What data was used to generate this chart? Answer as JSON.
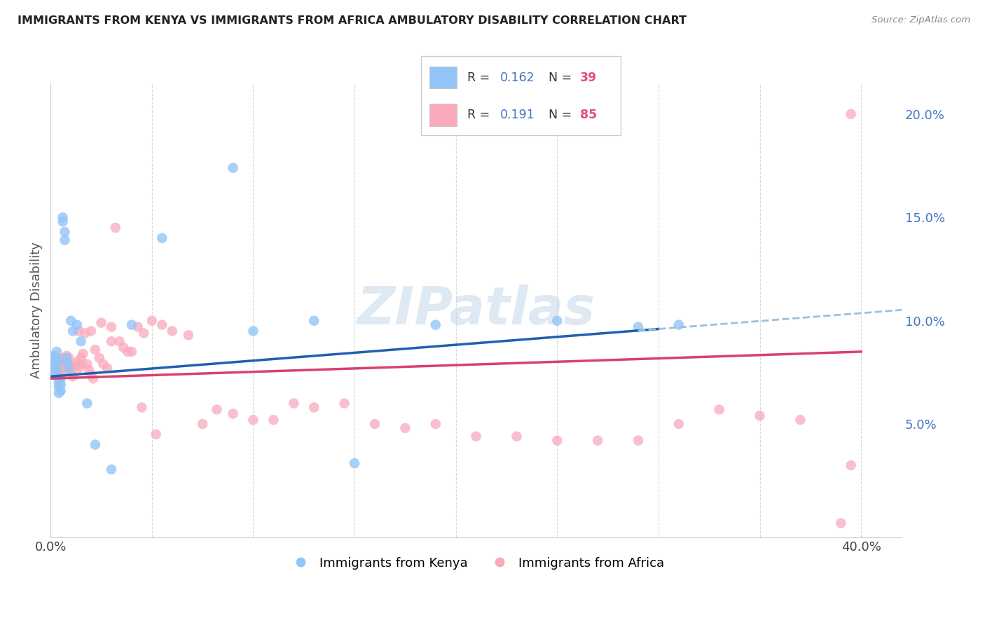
{
  "title": "IMMIGRANTS FROM KENYA VS IMMIGRANTS FROM AFRICA AMBULATORY DISABILITY CORRELATION CHART",
  "source": "Source: ZipAtlas.com",
  "ylabel": "Ambulatory Disability",
  "xlim": [
    0.0,
    0.42
  ],
  "ylim": [
    -0.005,
    0.215
  ],
  "x_ticks": [
    0.0,
    0.05,
    0.1,
    0.15,
    0.2,
    0.25,
    0.3,
    0.35,
    0.4
  ],
  "x_tick_labels": [
    "0.0%",
    "",
    "",
    "",
    "",
    "",
    "",
    "",
    "40.0%"
  ],
  "y_ticks_right": [
    0.05,
    0.1,
    0.15,
    0.2
  ],
  "y_tick_labels_right": [
    "5.0%",
    "10.0%",
    "15.0%",
    "20.0%"
  ],
  "color_kenya": "#92C5F7",
  "color_africa": "#F9AABB",
  "color_line_kenya": "#2060B0",
  "color_line_africa": "#D94070",
  "color_line_kenya_dash": "#9BBFE0",
  "watermark_color": "#C5D8EC",
  "kenya_x": [
    0.001,
    0.001,
    0.002,
    0.002,
    0.002,
    0.003,
    0.003,
    0.003,
    0.003,
    0.004,
    0.004,
    0.004,
    0.005,
    0.005,
    0.005,
    0.006,
    0.006,
    0.007,
    0.007,
    0.008,
    0.008,
    0.009,
    0.01,
    0.011,
    0.013,
    0.015,
    0.018,
    0.022,
    0.03,
    0.04,
    0.055,
    0.09,
    0.1,
    0.13,
    0.15,
    0.19,
    0.25,
    0.29,
    0.31
  ],
  "kenya_y": [
    0.082,
    0.079,
    0.083,
    0.08,
    0.075,
    0.085,
    0.082,
    0.079,
    0.076,
    0.07,
    0.068,
    0.065,
    0.072,
    0.069,
    0.066,
    0.15,
    0.148,
    0.143,
    0.139,
    0.082,
    0.08,
    0.077,
    0.1,
    0.095,
    0.098,
    0.09,
    0.06,
    0.04,
    0.028,
    0.098,
    0.14,
    0.174,
    0.095,
    0.1,
    0.031,
    0.098,
    0.1,
    0.097,
    0.098
  ],
  "africa_x": [
    0.001,
    0.001,
    0.001,
    0.002,
    0.002,
    0.002,
    0.003,
    0.003,
    0.003,
    0.004,
    0.004,
    0.004,
    0.005,
    0.005,
    0.005,
    0.005,
    0.006,
    0.006,
    0.007,
    0.007,
    0.007,
    0.008,
    0.008,
    0.008,
    0.009,
    0.009,
    0.01,
    0.01,
    0.011,
    0.012,
    0.013,
    0.014,
    0.015,
    0.015,
    0.016,
    0.017,
    0.018,
    0.019,
    0.02,
    0.021,
    0.022,
    0.024,
    0.026,
    0.028,
    0.03,
    0.032,
    0.034,
    0.036,
    0.04,
    0.043,
    0.046,
    0.05,
    0.055,
    0.06,
    0.068,
    0.075,
    0.082,
    0.09,
    0.1,
    0.11,
    0.12,
    0.13,
    0.145,
    0.16,
    0.175,
    0.19,
    0.21,
    0.23,
    0.25,
    0.27,
    0.29,
    0.31,
    0.33,
    0.35,
    0.37,
    0.39,
    0.395,
    0.014,
    0.02,
    0.025,
    0.03,
    0.038,
    0.045,
    0.052,
    0.395
  ],
  "africa_y": [
    0.083,
    0.08,
    0.077,
    0.082,
    0.079,
    0.076,
    0.08,
    0.077,
    0.074,
    0.078,
    0.075,
    0.072,
    0.082,
    0.079,
    0.076,
    0.073,
    0.08,
    0.077,
    0.082,
    0.079,
    0.076,
    0.083,
    0.08,
    0.077,
    0.082,
    0.079,
    0.078,
    0.075,
    0.073,
    0.078,
    0.08,
    0.077,
    0.082,
    0.079,
    0.084,
    0.094,
    0.079,
    0.076,
    0.074,
    0.072,
    0.086,
    0.082,
    0.079,
    0.077,
    0.09,
    0.145,
    0.09,
    0.087,
    0.085,
    0.097,
    0.094,
    0.1,
    0.098,
    0.095,
    0.093,
    0.05,
    0.057,
    0.055,
    0.052,
    0.052,
    0.06,
    0.058,
    0.06,
    0.05,
    0.048,
    0.05,
    0.044,
    0.044,
    0.042,
    0.042,
    0.042,
    0.05,
    0.057,
    0.054,
    0.052,
    0.002,
    0.2,
    0.095,
    0.095,
    0.099,
    0.097,
    0.085,
    0.058,
    0.045,
    0.03
  ],
  "trend_kenya_x0": 0.0,
  "trend_kenya_y0": 0.073,
  "trend_kenya_x1": 0.3,
  "trend_kenya_y1": 0.096,
  "trend_africa_x0": 0.0,
  "trend_africa_y0": 0.072,
  "trend_africa_x1": 0.4,
  "trend_africa_y1": 0.085,
  "trend_kenya_dash_x0": 0.29,
  "trend_kenya_dash_x1": 0.42
}
